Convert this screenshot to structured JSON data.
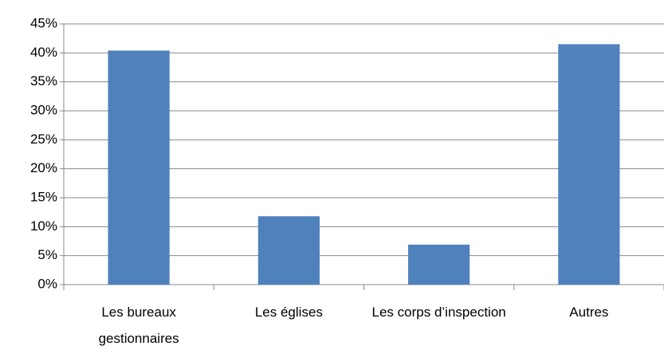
{
  "chart_data": {
    "type": "bar",
    "categories": [
      "Les bureaux gestionnaires",
      "Les églises",
      "Les corps d’inspection",
      "Autres"
    ],
    "values": [
      40.4,
      11.8,
      6.9,
      41.5
    ],
    "color": "#4f81bd",
    "ylim": [
      0,
      45
    ],
    "yticks": [
      {
        "value": 0,
        "label": "0%"
      },
      {
        "value": 5,
        "label": "5%"
      },
      {
        "value": 10,
        "label": "10%"
      },
      {
        "value": 15,
        "label": "15%"
      },
      {
        "value": 20,
        "label": "20%"
      },
      {
        "value": 25,
        "label": "25%"
      },
      {
        "value": 30,
        "label": "30%"
      },
      {
        "value": 35,
        "label": "35%"
      },
      {
        "value": 40,
        "label": "40%"
      },
      {
        "value": 45,
        "label": "45%"
      }
    ],
    "grid": true
  }
}
